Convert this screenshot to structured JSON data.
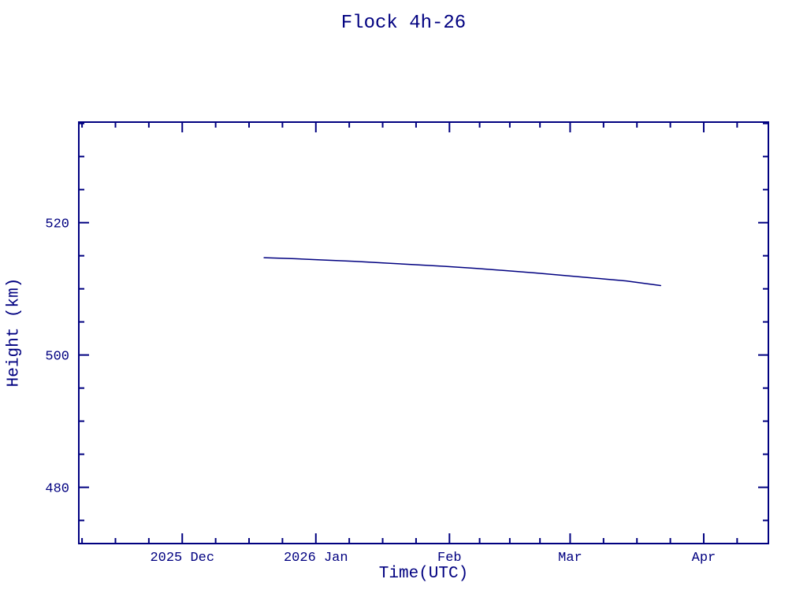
{
  "page": {
    "background": "#ffffff"
  },
  "chart_data": {
    "type": "line",
    "title": "Flock 4h-26",
    "xlabel": "Time(UTC)",
    "ylabel": "Height (km)",
    "color": "#000080",
    "grid": false,
    "legend": false,
    "x_epoch": "2025-11-07",
    "xlim_days": [
      0,
      160
    ],
    "ylim": [
      471.5,
      535.2
    ],
    "x_ticks": [
      {
        "date": "2025-12-01",
        "label": "2025 Dec"
      },
      {
        "date": "2026-01-01",
        "label": "2026 Jan"
      },
      {
        "date": "2026-02-01",
        "label": "Feb"
      },
      {
        "date": "2026-03-01",
        "label": "Mar"
      },
      {
        "date": "2026-04-01",
        "label": "Apr"
      }
    ],
    "y_ticks": [
      480,
      500,
      520
    ],
    "series": [
      {
        "name": "Flock 4h-26 height",
        "points": [
          [
            "2025-12-20",
            514.7
          ],
          [
            "2025-12-27",
            514.55
          ],
          [
            "2026-01-03",
            514.35
          ],
          [
            "2026-01-10",
            514.15
          ],
          [
            "2026-01-17",
            513.9
          ],
          [
            "2026-01-24",
            513.65
          ],
          [
            "2026-01-31",
            513.4
          ],
          [
            "2026-02-07",
            513.1
          ],
          [
            "2026-02-14",
            512.75
          ],
          [
            "2026-02-21",
            512.4
          ],
          [
            "2026-02-28",
            512.0
          ],
          [
            "2026-03-07",
            511.6
          ],
          [
            "2026-03-14",
            511.2
          ],
          [
            "2026-03-22",
            510.5
          ]
        ]
      }
    ]
  }
}
